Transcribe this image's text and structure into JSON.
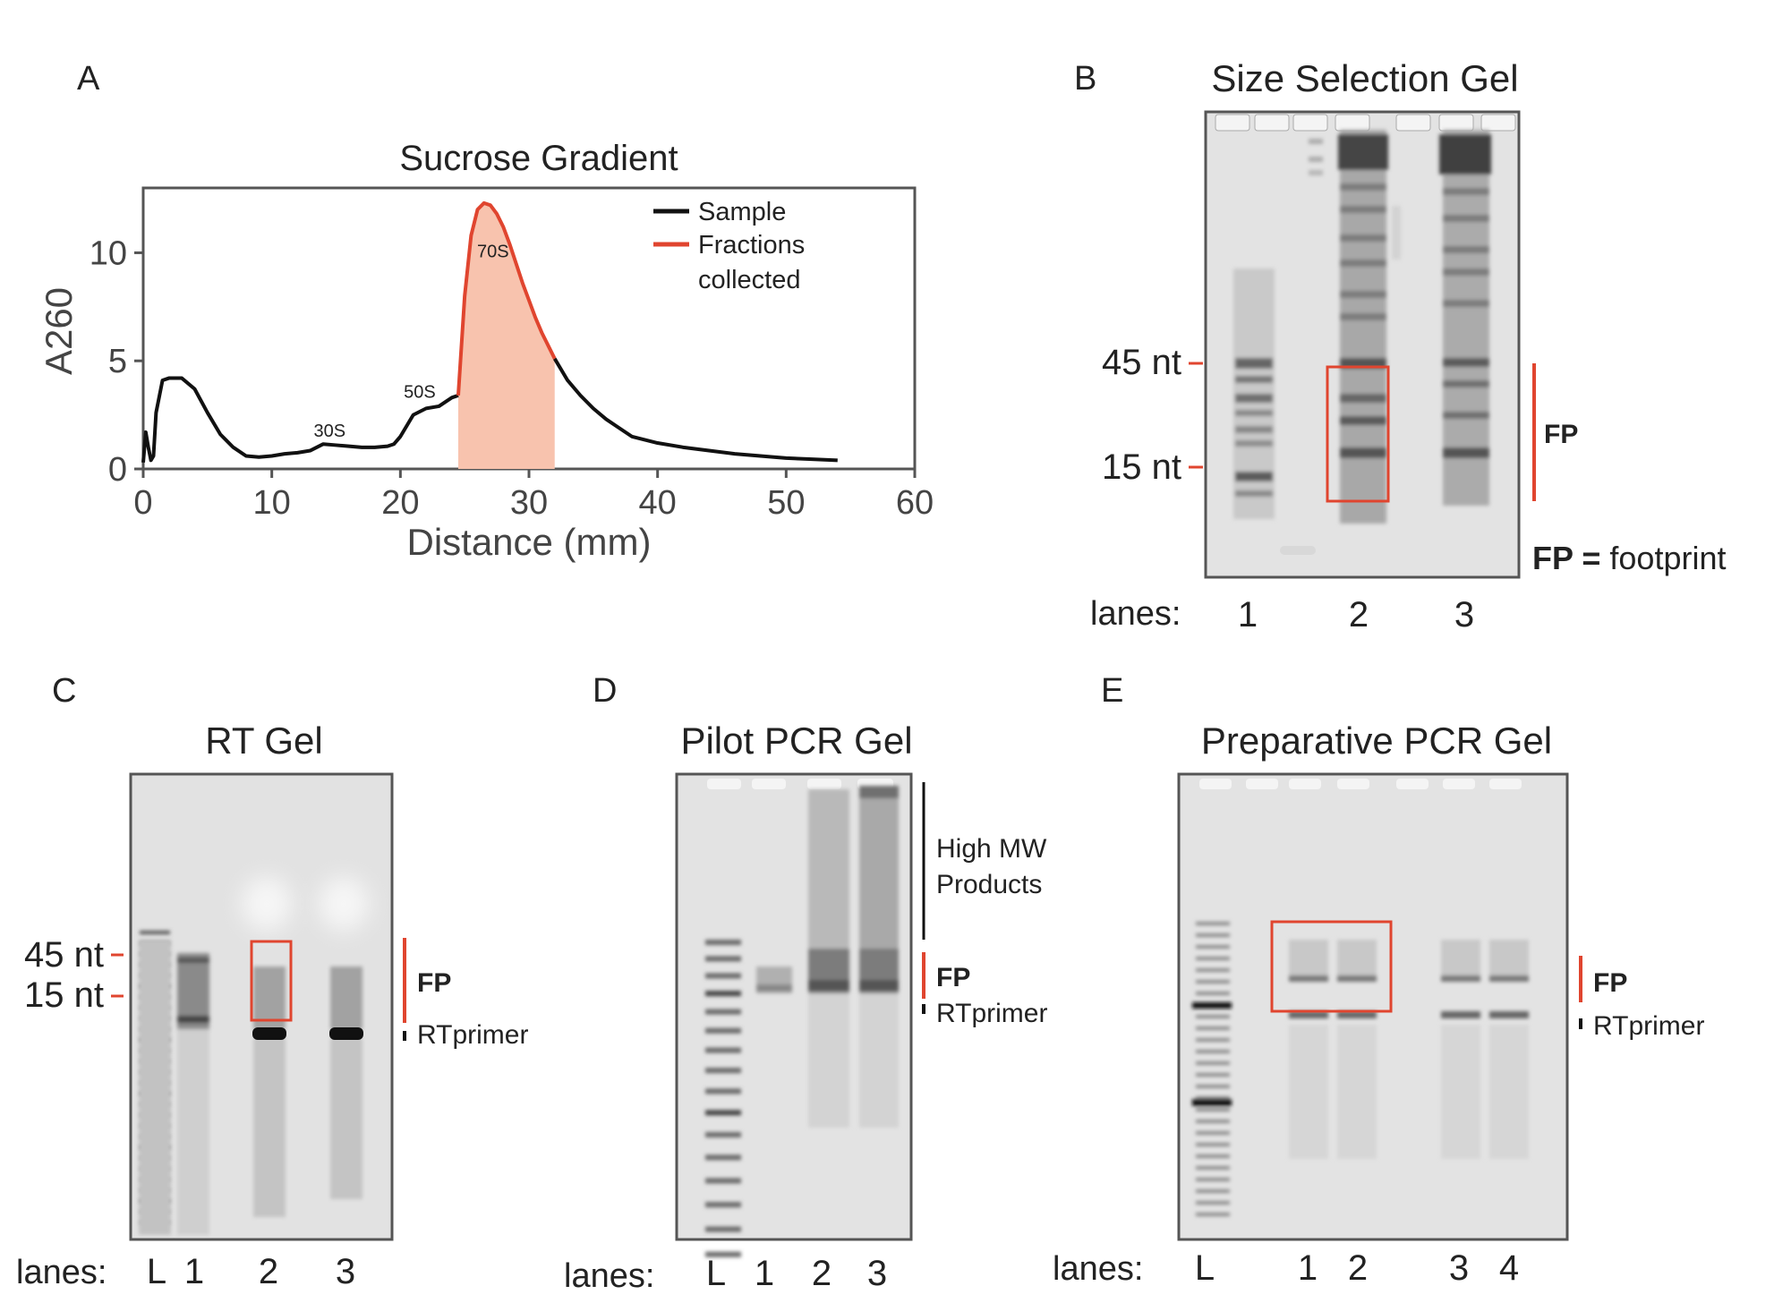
{
  "colors": {
    "accent_red": "#e0452f",
    "fill_salmon": "#f8c3ae",
    "sample_black": "#111111",
    "gel_bg": "#e4e4e4",
    "frame": "#555555"
  },
  "panelA": {
    "letter": "A",
    "chart_data": {
      "type": "line",
      "title": "Sucrose Gradient",
      "xlabel": "Distance (mm)",
      "ylabel": "A260",
      "xlim": [
        0,
        60
      ],
      "ylim": [
        0,
        13
      ],
      "xticks": [
        "0",
        "10",
        "20",
        "30",
        "40",
        "50",
        "60"
      ],
      "yticks": [
        "0",
        "5",
        "10"
      ],
      "legend": {
        "position": "top-right",
        "entries": [
          "Sample",
          "Fractions collected"
        ]
      },
      "legend_lines": [
        "Sample",
        "Fractions",
        "collected"
      ],
      "series": [
        {
          "name": "Sample",
          "color": "#111111",
          "x": [
            0,
            0.2,
            0.4,
            0.6,
            0.8,
            1,
            1.5,
            2,
            3,
            4,
            5,
            6,
            7,
            8,
            9,
            10,
            11,
            12,
            13,
            14,
            15,
            16,
            17,
            18,
            19,
            19.5,
            20,
            21,
            22,
            23,
            24,
            24.5
          ],
          "y": [
            0.3,
            1.7,
            1,
            0.4,
            0.6,
            2.6,
            4.1,
            4.2,
            4.2,
            3.7,
            2.6,
            1.6,
            1,
            0.6,
            0.55,
            0.6,
            0.7,
            0.75,
            0.85,
            1.15,
            1.1,
            1.05,
            1,
            1,
            1.05,
            1.15,
            1.5,
            2.5,
            2.8,
            2.9,
            3.3,
            3.4
          ]
        },
        {
          "name": "Fractions collected",
          "color": "#e0452f",
          "x": [
            24.5,
            25,
            25.5,
            26,
            26.5,
            27,
            27.5,
            28,
            28.5,
            29,
            29.5,
            30,
            30.5,
            31,
            31.5,
            32
          ],
          "y": [
            3.4,
            8,
            10.8,
            12,
            12.3,
            12.2,
            11.8,
            11.2,
            10.4,
            9.5,
            8.6,
            7.8,
            7,
            6.3,
            5.7,
            5.1
          ]
        },
        {
          "name": "",
          "color": "#111111",
          "x": [
            32,
            33,
            34,
            35,
            36,
            37,
            38,
            40,
            42,
            44,
            46,
            48,
            50,
            52,
            54
          ],
          "y": [
            5.1,
            4.1,
            3.4,
            2.8,
            2.3,
            1.9,
            1.5,
            1.2,
            1,
            0.85,
            0.7,
            0.6,
            0.5,
            0.45,
            0.4
          ]
        }
      ],
      "shaded_region": {
        "x_from": 24.5,
        "x_to": 32,
        "color": "#f8c3ae"
      },
      "annotations": [
        {
          "text": "30S",
          "x": 14.5,
          "y": 1.5
        },
        {
          "text": "50S",
          "x": 21.5,
          "y": 3.3
        },
        {
          "text": "70S",
          "x": 27.2,
          "y": 9.8
        }
      ]
    }
  },
  "panelB": {
    "letter": "B",
    "title": "Size Selection Gel",
    "marker_45": "45 nt",
    "marker_15": "15 nt",
    "fp_label": "FP",
    "legend_fp": "FP =",
    "legend_text": "footprint",
    "lanes_label": "lanes:",
    "lanes": [
      "1",
      "2",
      "3"
    ]
  },
  "panelC": {
    "letter": "C",
    "title": "RT Gel",
    "marker_45": "45 nt",
    "marker_15": "15 nt",
    "fp_label": "FP",
    "rt_label": "RTprimer",
    "lanes_label": "lanes:",
    "lanes": [
      "L",
      "1",
      "2",
      "3"
    ]
  },
  "panelD": {
    "letter": "D",
    "title": "Pilot PCR Gel",
    "high_mw_1": "High MW",
    "high_mw_2": "Products",
    "fp_label": "FP",
    "rt_label": "RTprimer",
    "lanes_label": "lanes:",
    "lanes": [
      "L",
      "1",
      "2",
      "3"
    ]
  },
  "panelE": {
    "letter": "E",
    "title": "Preparative PCR Gel",
    "fp_label": "FP",
    "rt_label": "RTprimer",
    "lanes_label": "lanes:",
    "lanes": [
      "L",
      "1",
      "2",
      "3",
      "4"
    ]
  }
}
